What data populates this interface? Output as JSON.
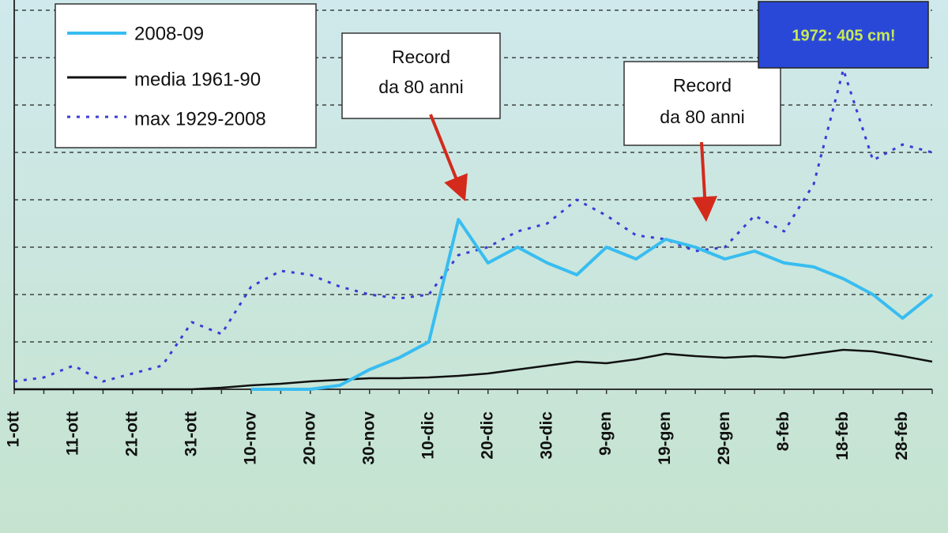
{
  "chart_data": {
    "type": "line",
    "categories": [
      "1-ott",
      null,
      "11-ott",
      null,
      "21-ott",
      null,
      "31-ott",
      null,
      "10-nov",
      null,
      "20-nov",
      null,
      "30-nov",
      null,
      "10-dic",
      null,
      "20-dic",
      null,
      "30-dic",
      null,
      "9-gen",
      null,
      "19-gen",
      null,
      "29-gen",
      null,
      "8-feb",
      null,
      "18-feb",
      null,
      "28-feb",
      null
    ],
    "series": [
      {
        "name": "2008-09",
        "color": "#38bdf0",
        "style": "solid",
        "values": [
          null,
          null,
          null,
          null,
          null,
          null,
          null,
          null,
          0,
          0,
          0,
          5,
          25,
          40,
          60,
          215,
          160,
          180,
          160,
          145,
          180,
          165,
          190,
          180,
          165,
          175,
          160,
          155,
          140,
          120,
          90,
          120
        ]
      },
      {
        "name": "media 1961-90",
        "color": "#111111",
        "style": "solid",
        "values": [
          0,
          0,
          0,
          0,
          0,
          0,
          0,
          2,
          5,
          7,
          10,
          12,
          14,
          14,
          15,
          17,
          20,
          25,
          30,
          35,
          33,
          38,
          45,
          42,
          40,
          42,
          40,
          45,
          50,
          48,
          42,
          35
        ]
      },
      {
        "name": "max 1929-2008",
        "color": "#3b3bd8",
        "style": "dotted",
        "values": [
          10,
          15,
          30,
          10,
          20,
          30,
          85,
          70,
          130,
          150,
          145,
          130,
          120,
          115,
          120,
          170,
          180,
          200,
          210,
          240,
          220,
          195,
          190,
          175,
          180,
          220,
          200,
          260,
          405,
          290,
          310,
          300
        ]
      }
    ],
    "ylim": [
      0,
      480
    ],
    "yticks": [
      0,
      60,
      120,
      180,
      240,
      300,
      360,
      420,
      480
    ],
    "grid": true,
    "annotations": [
      {
        "lines": [
          "Record",
          "da 80 anni"
        ]
      },
      {
        "lines": [
          "Record",
          "da 80 anni"
        ]
      },
      {
        "text": "1972: 405 cm!"
      }
    ]
  }
}
